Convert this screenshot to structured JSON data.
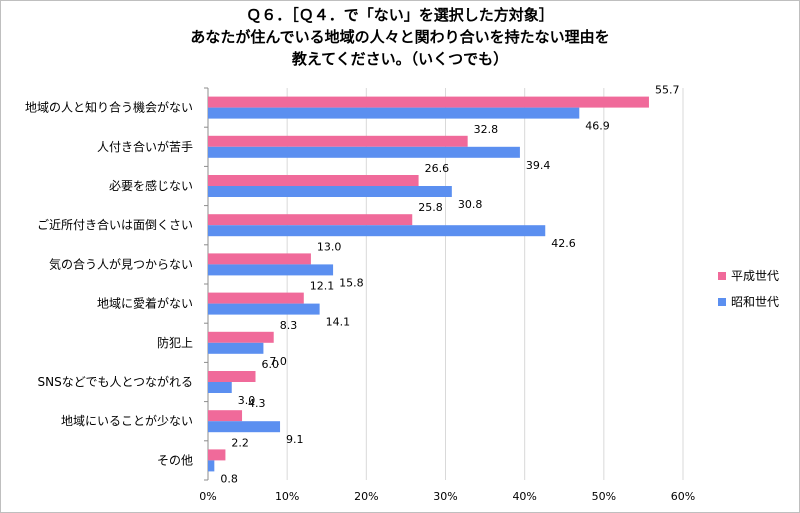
{
  "title": {
    "line1": "Ｑ６．［Ｑ４．で「ない」を選択した方対象］",
    "line2": "あなたが住んでいる地域の人々と関わり合いを持たない理由を",
    "line3": "教えてください。（いくつでも）"
  },
  "chart_data": {
    "type": "bar",
    "orientation": "horizontal",
    "categories": [
      "地域の人と知り合う機会がない",
      "人付き合いが苦手",
      "必要を感じない",
      "ご近所付き合いは面倒くさい",
      "気の合う人が見つからない",
      "地域に愛着がない",
      "防犯上",
      "SNSなどでも人とつながれる",
      "地域にいることが少ない",
      "その他"
    ],
    "series": [
      {
        "name": "平成世代",
        "color": "#f06a9a",
        "values": [
          55.7,
          32.8,
          26.6,
          25.8,
          13.0,
          12.1,
          8.3,
          6.0,
          4.3,
          2.2
        ]
      },
      {
        "name": "昭和世代",
        "color": "#5b8ff0",
        "values": [
          46.9,
          39.4,
          30.8,
          42.6,
          15.8,
          14.1,
          7.0,
          3.0,
          9.1,
          0.8
        ]
      }
    ],
    "xlim": [
      0,
      60
    ],
    "xticks": [
      "0%",
      "10%",
      "20%",
      "30%",
      "40%",
      "50%",
      "60%"
    ],
    "grid": true,
    "legend": "right"
  }
}
